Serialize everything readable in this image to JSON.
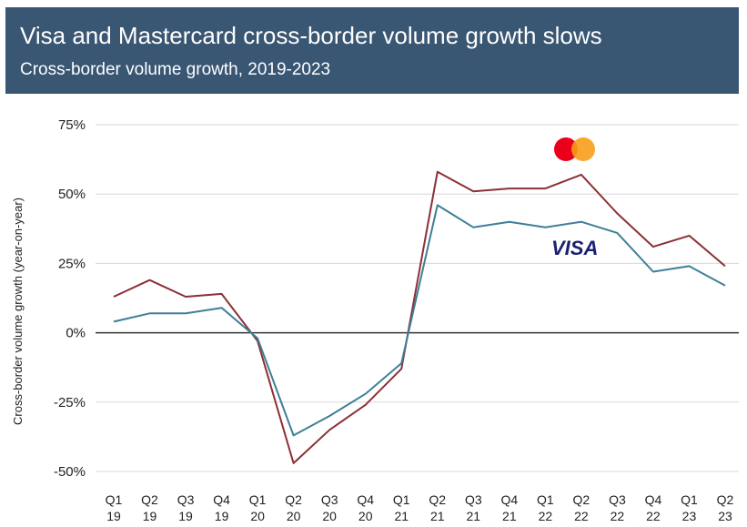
{
  "header": {
    "title": "Visa and Mastercard cross-border volume growth slows",
    "subtitle": "Cross-border volume growth, 2019-2023"
  },
  "logos": {
    "visa": "VISA",
    "mastercard": "mastercard-logo"
  },
  "colors": {
    "header_bg": "#395673",
    "mastercard_line": "#8c2f36",
    "visa_line": "#3f7f97",
    "mc_red": "#eb001b",
    "mc_orange": "#f79e1b"
  },
  "chart_data": {
    "type": "line",
    "title": "Visa and Mastercard cross-border volume growth slows",
    "subtitle": "Cross-border volume growth, 2019-2023",
    "ylabel": "Cross-border volume growth (year-on-year)",
    "xlabel": "",
    "ylim": [
      -50,
      75
    ],
    "yticks": [
      "75%",
      "50%",
      "25%",
      "0%",
      "-25%",
      "-50%"
    ],
    "ytick_values": [
      75,
      50,
      25,
      0,
      -25,
      -50
    ],
    "categories": [
      [
        "Q1",
        "19"
      ],
      [
        "Q2",
        "19"
      ],
      [
        "Q3",
        "19"
      ],
      [
        "Q4",
        "19"
      ],
      [
        "Q1",
        "20"
      ],
      [
        "Q2",
        "20"
      ],
      [
        "Q3",
        "20"
      ],
      [
        "Q4",
        "20"
      ],
      [
        "Q1",
        "21"
      ],
      [
        "Q2",
        "21"
      ],
      [
        "Q3",
        "21"
      ],
      [
        "Q4",
        "21"
      ],
      [
        "Q1",
        "22"
      ],
      [
        "Q2",
        "22"
      ],
      [
        "Q3",
        "22"
      ],
      [
        "Q4",
        "22"
      ],
      [
        "Q1",
        "23"
      ],
      [
        "Q2",
        "23"
      ]
    ],
    "grid": true,
    "series": [
      {
        "id": "mastercard",
        "values": [
          13,
          19,
          13,
          14,
          -3,
          -47,
          -35,
          -26,
          -13,
          58,
          51,
          52,
          52,
          57,
          43,
          31,
          35,
          24
        ]
      },
      {
        "id": "visa",
        "values": [
          4,
          7,
          7,
          9,
          -2,
          -37,
          -30,
          -22,
          -11,
          46,
          38,
          40,
          38,
          40,
          36,
          22,
          24,
          17
        ]
      }
    ]
  }
}
